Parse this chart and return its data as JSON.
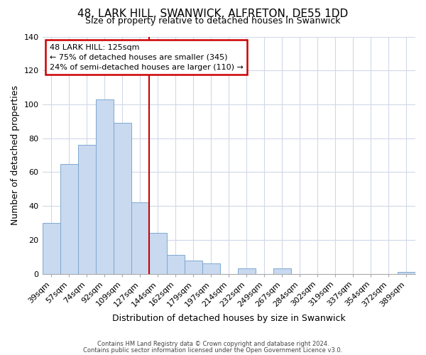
{
  "title": "48, LARK HILL, SWANWICK, ALFRETON, DE55 1DD",
  "subtitle": "Size of property relative to detached houses in Swanwick",
  "xlabel": "Distribution of detached houses by size in Swanwick",
  "ylabel": "Number of detached properties",
  "categories": [
    "39sqm",
    "57sqm",
    "74sqm",
    "92sqm",
    "109sqm",
    "127sqm",
    "144sqm",
    "162sqm",
    "179sqm",
    "197sqm",
    "214sqm",
    "232sqm",
    "249sqm",
    "267sqm",
    "284sqm",
    "302sqm",
    "319sqm",
    "337sqm",
    "354sqm",
    "372sqm",
    "389sqm"
  ],
  "values": [
    30,
    65,
    76,
    103,
    89,
    42,
    24,
    11,
    8,
    6,
    0,
    3,
    0,
    3,
    0,
    0,
    0,
    0,
    0,
    0,
    1
  ],
  "bar_color": "#c8d9f0",
  "bar_edge_color": "#7fa8d0",
  "vline_index": 5,
  "vline_color": "#cc0000",
  "ylim": [
    0,
    140
  ],
  "yticks": [
    0,
    20,
    40,
    60,
    80,
    100,
    120,
    140
  ],
  "annotation_title": "48 LARK HILL: 125sqm",
  "annotation_line1": "← 75% of detached houses are smaller (345)",
  "annotation_line2": "24% of semi-detached houses are larger (110) →",
  "footer1": "Contains HM Land Registry data © Crown copyright and database right 2024.",
  "footer2": "Contains public sector information licensed under the Open Government Licence v3.0.",
  "background_color": "#ffffff",
  "grid_color": "#d0d8e8",
  "ann_box_color": "#cc0000",
  "title_fontsize": 11,
  "subtitle_fontsize": 9,
  "axis_label_fontsize": 9,
  "tick_fontsize": 8,
  "ann_fontsize": 8,
  "footer_fontsize": 6
}
